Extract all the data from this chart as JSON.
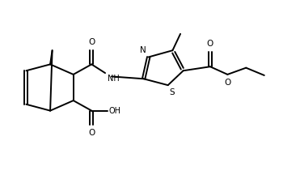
{
  "bg_color": "#ffffff",
  "line_color": "#000000",
  "line_width": 1.4,
  "figsize": [
    3.71,
    2.16
  ],
  "dpi": 100,
  "xlim": [
    0,
    10
  ],
  "ylim": [
    0,
    6
  ]
}
